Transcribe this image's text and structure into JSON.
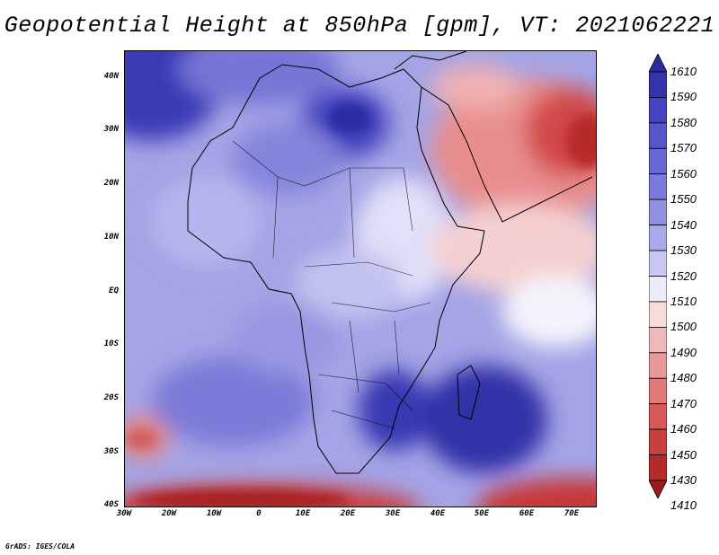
{
  "title": "Geopotential Height at 850hPa [gpm], VT: 2021062221",
  "lat_ticks": [
    "40N",
    "30N",
    "20N",
    "10N",
    "EQ",
    "10S",
    "20S",
    "30S",
    "40S"
  ],
  "lon_ticks": [
    "30W",
    "20W",
    "10W",
    "0",
    "10E",
    "20E",
    "30E",
    "40E",
    "50E",
    "60E",
    "70E"
  ],
  "colorbar": {
    "labels": [
      "1610",
      "1590",
      "1580",
      "1570",
      "1560",
      "1550",
      "1540",
      "1530",
      "1520",
      "1510",
      "1500",
      "1490",
      "1480",
      "1470",
      "1460",
      "1450",
      "1430",
      "1410"
    ],
    "colors": [
      "#2a2a9c",
      "#3434b0",
      "#4444c4",
      "#5555cc",
      "#6666d4",
      "#7a7adc",
      "#9090e0",
      "#aaaaea",
      "#c8c8f2",
      "#ececfa",
      "#f8dcdc",
      "#f0b8b8",
      "#e89898",
      "#e07878",
      "#d85858",
      "#c84040",
      "#b82a2a",
      "#9c1a1a"
    ]
  },
  "credit": "GrADS: IGES/COLA"
}
